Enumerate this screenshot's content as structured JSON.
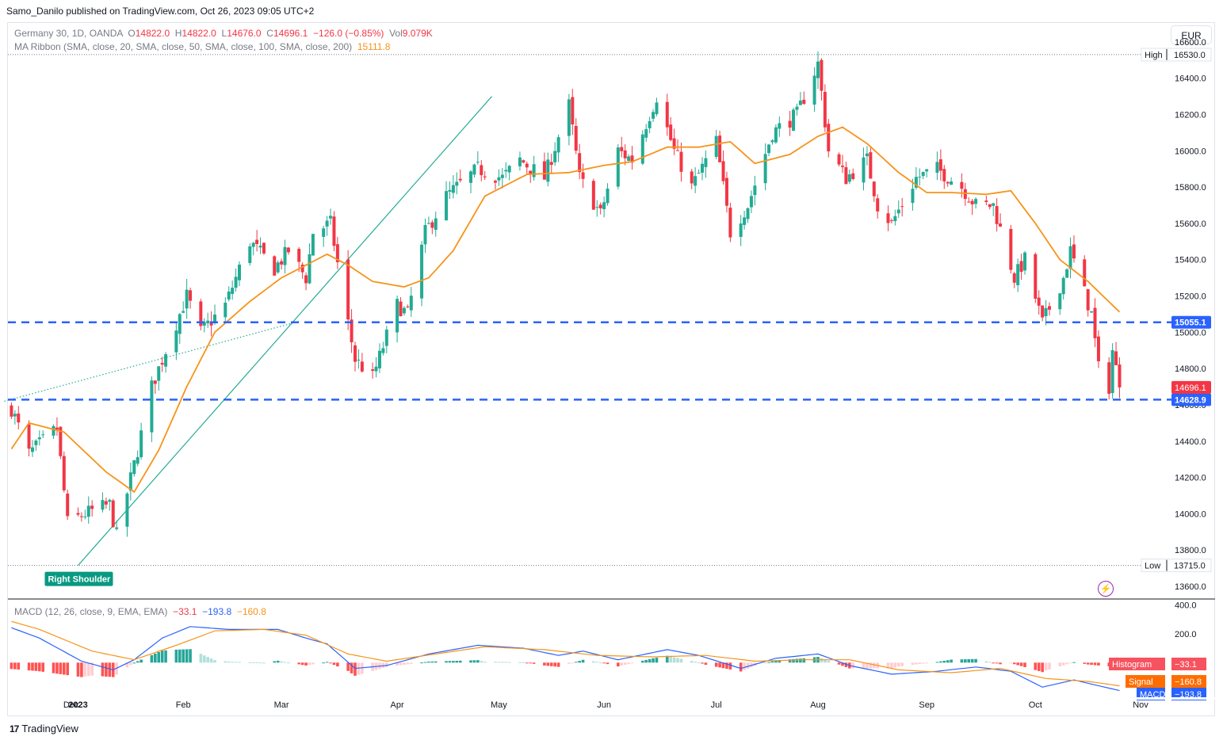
{
  "publisher": "Samo_Danilo published on TradingView.com, Oct 26, 2023 09:05 UTC+2",
  "legend": {
    "symbol": "Germany 30, 1D, OANDA",
    "o_label": "O",
    "o": "14822.0",
    "h_label": "H",
    "h": "14822.0",
    "l_label": "L",
    "l": "14676.0",
    "c_label": "C",
    "c": "14696.1",
    "chg": "−126.0 (−0.85%)",
    "vol_label": "Vol",
    "vol": "9.079K",
    "ma_name": "MA Ribbon (SMA, close, 20, SMA, close, 50, SMA, close, 100, SMA, close, 200)",
    "ma_value": "15111.8",
    "macd_name": "MACD (12, 26, close, 9, EMA, EMA)",
    "macd_hist": "−33.1",
    "macd_macd": "−193.8",
    "macd_signal": "−160.8"
  },
  "currency": "EUR",
  "footer": "TradingView",
  "colors": {
    "up": "#22ab94",
    "down": "#f23645",
    "sma": "#f7931a",
    "level": "#2962ff",
    "trend": "#22ab94",
    "macd": "#2962ff",
    "signal": "#f7931a"
  },
  "chart_data": {
    "type": "candlestick",
    "title": "Germany 30, 1D, OANDA",
    "price_axis": {
      "ticks": [
        16600,
        16400,
        16200,
        16000,
        15800,
        15600,
        15400,
        15200,
        15000,
        14800,
        14600,
        14400,
        14200,
        14000,
        13800,
        13600
      ],
      "tick_labels": [
        "16600.0",
        "16400.0",
        "16200.0",
        "16000.0",
        "15800.0",
        "15600.0",
        "15400.0",
        "15200.0",
        "15000.0",
        "14800.0",
        "14600.0",
        "14400.0",
        "14200.0",
        "14000.0",
        "13800.0",
        "13600.0"
      ],
      "range": [
        13530,
        16700
      ]
    },
    "time_axis": {
      "labels": [
        "Dec",
        "2023",
        "Feb",
        "Mar",
        "Apr",
        "May",
        "Jun",
        "Jul",
        "Aug",
        "Sep",
        "Oct",
        "Nov"
      ],
      "label_dates": [
        "2022-12-31",
        "2023-01-02",
        "2023-02-01",
        "2023-03-01",
        "2023-04-03",
        "2023-05-02",
        "2023-06-01",
        "2023-07-03",
        "2023-08-01",
        "2023-09-01",
        "2023-10-02",
        "2023-11-01"
      ],
      "start": "2022-12-13",
      "end": "2023-11-08"
    },
    "markers": {
      "high_label": "High",
      "high": 16530.0,
      "high_text": "16530.0",
      "low_label": "Low",
      "low": 13715.0,
      "low_text": "13715.0",
      "last_text": "14696.1",
      "last": 14696.1
    },
    "levels": [
      {
        "value": 15055.1,
        "text": "15055.1"
      },
      {
        "value": 14628.9,
        "text": "14628.9"
      }
    ],
    "annotations": [
      {
        "text": "Right Shoulder",
        "date": "2023-01-02",
        "price": 13715
      }
    ],
    "trendlines": [
      {
        "from": {
          "date": "2023-01-02",
          "price": 13715
        },
        "to": {
          "date": "2023-04-30",
          "price": 16300
        },
        "style": "solid"
      },
      {
        "from": {
          "date": "2022-12-12",
          "price": 14620
        },
        "to": {
          "date": "2023-03-06",
          "price": 15060
        },
        "style": "dotted"
      }
    ],
    "anchors": [
      [
        "2022-12-14",
        14580
      ],
      [
        "2022-12-19",
        14330
      ],
      [
        "2022-12-27",
        14470
      ],
      [
        "2022-12-30",
        13950
      ],
      [
        "2023-01-04",
        14000
      ],
      [
        "2023-01-11",
        14050
      ],
      [
        "2023-01-13",
        13880
      ],
      [
        "2023-01-19",
        14350
      ],
      [
        "2023-01-23",
        14700
      ],
      [
        "2023-01-30",
        15050
      ],
      [
        "2023-02-02",
        15200
      ],
      [
        "2023-02-06",
        15000
      ],
      [
        "2023-02-13",
        15150
      ],
      [
        "2023-02-20",
        15500
      ],
      [
        "2023-02-27",
        15350
      ],
      [
        "2023-03-03",
        15450
      ],
      [
        "2023-03-08",
        15300
      ],
      [
        "2023-03-10",
        15550
      ],
      [
        "2023-03-15",
        15600
      ],
      [
        "2023-03-20",
        15050
      ],
      [
        "2023-03-22",
        14850
      ],
      [
        "2023-03-27",
        14750
      ],
      [
        "2023-04-03",
        15150
      ],
      [
        "2023-04-06",
        15100
      ],
      [
        "2023-04-11",
        15550
      ],
      [
        "2023-04-17",
        15750
      ],
      [
        "2023-04-26",
        15900
      ],
      [
        "2023-05-03",
        15850
      ],
      [
        "2023-05-08",
        15950
      ],
      [
        "2023-05-15",
        15850
      ],
      [
        "2023-05-22",
        16250
      ],
      [
        "2023-05-25",
        15850
      ],
      [
        "2023-05-31",
        15650
      ],
      [
        "2023-06-05",
        16000
      ],
      [
        "2023-06-09",
        15950
      ],
      [
        "2023-06-16",
        16300
      ],
      [
        "2023-06-21",
        16000
      ],
      [
        "2023-06-26",
        15800
      ],
      [
        "2023-07-03",
        16050
      ],
      [
        "2023-07-07",
        15550
      ],
      [
        "2023-07-12",
        15700
      ],
      [
        "2023-07-19",
        16100
      ],
      [
        "2023-07-26",
        16200
      ],
      [
        "2023-08-01",
        16480
      ],
      [
        "2023-08-04",
        16000
      ],
      [
        "2023-08-09",
        15850
      ],
      [
        "2023-08-15",
        15950
      ],
      [
        "2023-08-18",
        15700
      ],
      [
        "2023-08-22",
        15600
      ],
      [
        "2023-08-29",
        15850
      ],
      [
        "2023-09-04",
        15900
      ],
      [
        "2023-09-11",
        15800
      ],
      [
        "2023-09-15",
        15700
      ],
      [
        "2023-09-20",
        15700
      ],
      [
        "2023-09-26",
        15300
      ],
      [
        "2023-09-29",
        15400
      ],
      [
        "2023-10-04",
        15050
      ],
      [
        "2023-10-10",
        15300
      ],
      [
        "2023-10-12",
        15450
      ],
      [
        "2023-10-18",
        15100
      ],
      [
        "2023-10-20",
        14800
      ],
      [
        "2023-10-23",
        14700
      ],
      [
        "2023-10-24",
        14900
      ],
      [
        "2023-10-26",
        14696.1
      ]
    ],
    "sma_anchors": [
      [
        "2022-12-12",
        14300
      ],
      [
        "2022-12-19",
        14500
      ],
      [
        "2022-12-29",
        14450
      ],
      [
        "2023-01-10",
        14230
      ],
      [
        "2023-01-18",
        14120
      ],
      [
        "2023-01-25",
        14350
      ],
      [
        "2023-02-02",
        14700
      ],
      [
        "2023-02-10",
        15000
      ],
      [
        "2023-02-20",
        15170
      ],
      [
        "2023-03-01",
        15300
      ],
      [
        "2023-03-08",
        15370
      ],
      [
        "2023-03-14",
        15430
      ],
      [
        "2023-03-20",
        15370
      ],
      [
        "2023-03-27",
        15280
      ],
      [
        "2023-04-05",
        15250
      ],
      [
        "2023-04-12",
        15300
      ],
      [
        "2023-04-19",
        15450
      ],
      [
        "2023-04-28",
        15750
      ],
      [
        "2023-05-10",
        15870
      ],
      [
        "2023-05-22",
        15880
      ],
      [
        "2023-06-01",
        15920
      ],
      [
        "2023-06-09",
        15940
      ],
      [
        "2023-06-19",
        16020
      ],
      [
        "2023-06-28",
        16020
      ],
      [
        "2023-07-07",
        16050
      ],
      [
        "2023-07-14",
        15930
      ],
      [
        "2023-07-24",
        15980
      ],
      [
        "2023-08-01",
        16080
      ],
      [
        "2023-08-08",
        16130
      ],
      [
        "2023-08-15",
        16040
      ],
      [
        "2023-08-24",
        15880
      ],
      [
        "2023-09-01",
        15770
      ],
      [
        "2023-09-08",
        15770
      ],
      [
        "2023-09-18",
        15760
      ],
      [
        "2023-09-25",
        15780
      ],
      [
        "2023-10-02",
        15600
      ],
      [
        "2023-10-09",
        15400
      ],
      [
        "2023-10-17",
        15280
      ],
      [
        "2023-10-26",
        15111.8
      ]
    ],
    "macd_panel": {
      "ticks": [
        400,
        200
      ],
      "tick_labels": [
        "400.0",
        "200.0"
      ],
      "range": [
        -240,
        430
      ],
      "badges": [
        {
          "label": "Histogram",
          "value_text": "−33.1",
          "value": -33.1
        },
        {
          "label": "Signal",
          "value_text": "−160.8",
          "value": -160.8
        },
        {
          "label": "MACD",
          "value_text": "−193.8",
          "value": -193.8
        }
      ],
      "macd_anchors": [
        [
          "2022-12-12",
          260
        ],
        [
          "2022-12-22",
          170
        ],
        [
          "2023-01-03",
          10
        ],
        [
          "2023-01-12",
          -50
        ],
        [
          "2023-01-18",
          20
        ],
        [
          "2023-01-26",
          170
        ],
        [
          "2023-02-03",
          250
        ],
        [
          "2023-02-14",
          230
        ],
        [
          "2023-02-28",
          230
        ],
        [
          "2023-03-08",
          170
        ],
        [
          "2023-03-14",
          130
        ],
        [
          "2023-03-22",
          -40
        ],
        [
          "2023-03-31",
          -20
        ],
        [
          "2023-04-12",
          60
        ],
        [
          "2023-04-26",
          120
        ],
        [
          "2023-05-09",
          100
        ],
        [
          "2023-05-19",
          50
        ],
        [
          "2023-05-26",
          80
        ],
        [
          "2023-06-05",
          20
        ],
        [
          "2023-06-19",
          90
        ],
        [
          "2023-06-28",
          50
        ],
        [
          "2023-07-10",
          -40
        ],
        [
          "2023-07-20",
          30
        ],
        [
          "2023-08-01",
          60
        ],
        [
          "2023-08-10",
          -20
        ],
        [
          "2023-08-22",
          -80
        ],
        [
          "2023-09-04",
          -60
        ],
        [
          "2023-09-15",
          -30
        ],
        [
          "2023-09-25",
          -60
        ],
        [
          "2023-10-04",
          -170
        ],
        [
          "2023-10-13",
          -120
        ],
        [
          "2023-10-20",
          -160
        ],
        [
          "2023-10-26",
          -193.8
        ]
      ],
      "signal_anchors": [
        [
          "2022-12-12",
          300
        ],
        [
          "2022-12-22",
          230
        ],
        [
          "2023-01-06",
          80
        ],
        [
          "2023-01-18",
          20
        ],
        [
          "2023-01-30",
          120
        ],
        [
          "2023-02-10",
          220
        ],
        [
          "2023-02-24",
          230
        ],
        [
          "2023-03-08",
          190
        ],
        [
          "2023-03-20",
          60
        ],
        [
          "2023-03-31",
          10
        ],
        [
          "2023-04-14",
          60
        ],
        [
          "2023-04-28",
          110
        ],
        [
          "2023-05-15",
          90
        ],
        [
          "2023-05-30",
          50
        ],
        [
          "2023-06-15",
          40
        ],
        [
          "2023-06-30",
          50
        ],
        [
          "2023-07-14",
          10
        ],
        [
          "2023-07-28",
          20
        ],
        [
          "2023-08-10",
          20
        ],
        [
          "2023-08-24",
          -50
        ],
        [
          "2023-09-08",
          -70
        ],
        [
          "2023-09-22",
          -40
        ],
        [
          "2023-10-05",
          -110
        ],
        [
          "2023-10-17",
          -130
        ],
        [
          "2023-10-26",
          -160.8
        ]
      ]
    }
  }
}
